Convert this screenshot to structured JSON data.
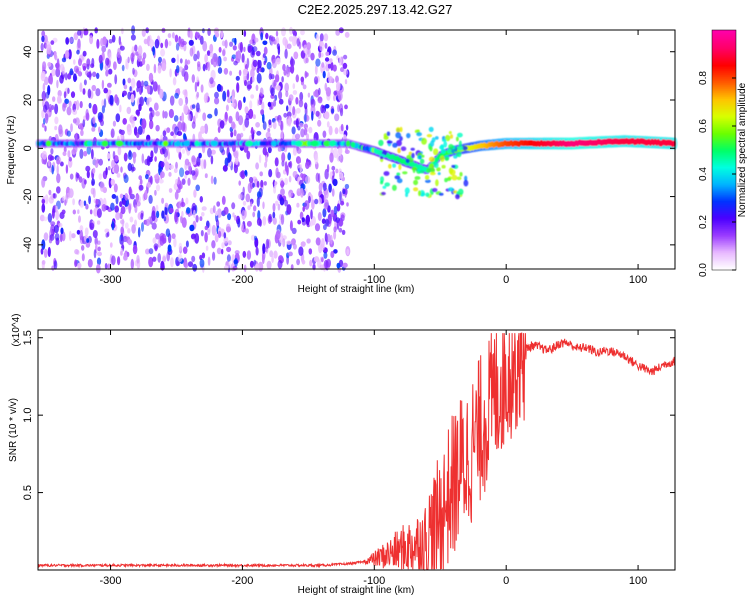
{
  "title": "C2E2.2025.297.13.42.G27",
  "chart_data": [
    {
      "type": "heatmap",
      "title": "C2E2.2025.297.13.42.G27",
      "xlabel": "Height of straight line (km)",
      "ylabel": "Frequency (Hz)",
      "xlim": [
        -355,
        128
      ],
      "ylim": [
        -50,
        49
      ],
      "x_ticks": [
        -300,
        -200,
        -100,
        0,
        100
      ],
      "y_ticks": [
        -40,
        -20,
        0,
        20,
        40
      ],
      "x_tick_labels": [
        "-300",
        "-200",
        "-100",
        "0",
        "100"
      ],
      "y_tick_labels": [
        "-40",
        "-20",
        "0",
        "20",
        "40"
      ],
      "colorbar": {
        "label": "Normalized spectral amplitude",
        "range": [
          0,
          1
        ],
        "ticks": [
          0.0,
          0.2,
          0.4,
          0.6,
          0.8
        ],
        "tick_labels": [
          "0.0",
          "0.2",
          "0.4",
          "0.6",
          "0.8"
        ],
        "colors": [
          "#ffffff",
          "#e8b8ff",
          "#9a3cff",
          "#4b00ff",
          "#0033ff",
          "#00b4ff",
          "#00ffe0",
          "#00ff66",
          "#6cff00",
          "#d8ff00",
          "#ffc400",
          "#ff5a00",
          "#ff0000",
          "#ff0066",
          "#ff00a8"
        ]
      },
      "ridge": [
        {
          "x": -355,
          "y": 2,
          "amp": 0.3
        },
        {
          "x": -200,
          "y": 2,
          "amp": 0.3
        },
        {
          "x": -120,
          "y": 2,
          "amp": 0.35
        },
        {
          "x": -100,
          "y": -1,
          "amp": 0.45
        },
        {
          "x": -80,
          "y": -5,
          "amp": 0.5
        },
        {
          "x": -60,
          "y": -9,
          "amp": 0.45
        },
        {
          "x": -50,
          "y": -3,
          "amp": 0.5
        },
        {
          "x": -40,
          "y": -1,
          "amp": 0.55
        },
        {
          "x": -20,
          "y": 1,
          "amp": 0.7
        },
        {
          "x": 0,
          "y": 2,
          "amp": 0.8
        },
        {
          "x": 50,
          "y": 2,
          "amp": 0.95
        },
        {
          "x": 90,
          "y": 3,
          "amp": 0.9
        },
        {
          "x": 128,
          "y": 2,
          "amp": 0.9
        }
      ]
    },
    {
      "type": "line",
      "title": "",
      "xlabel": "Height of straight line (km)",
      "ylabel": "SNR (10 * v/v)",
      "y_scale_label": "(x10^4)",
      "xlim": [
        -355,
        128
      ],
      "ylim": [
        0,
        1.55
      ],
      "x_ticks": [
        -300,
        -200,
        -100,
        0,
        100
      ],
      "y_ticks": [
        0.5,
        1.0,
        1.5
      ],
      "x_tick_labels": [
        "-300",
        "-200",
        "-100",
        "0",
        "100"
      ],
      "y_tick_labels": [
        "0.5",
        "1.0",
        "1.5"
      ],
      "series": [
        {
          "name": "SNR",
          "color": "#ee3030",
          "x": [
            -355,
            -340,
            -320,
            -300,
            -280,
            -260,
            -240,
            -220,
            -200,
            -180,
            -160,
            -140,
            -120,
            -110,
            -100,
            -90,
            -80,
            -70,
            -60,
            -55,
            -50,
            -45,
            -40,
            -35,
            -30,
            -25,
            -20,
            -15,
            -10,
            -5,
            0,
            5,
            10,
            15,
            20,
            25,
            30,
            35,
            40,
            45,
            50,
            55,
            60,
            65,
            70,
            75,
            80,
            85,
            90,
            95,
            100,
            105,
            110,
            115,
            120,
            128
          ],
          "values": [
            0.03,
            0.03,
            0.03,
            0.03,
            0.03,
            0.03,
            0.03,
            0.03,
            0.03,
            0.03,
            0.03,
            0.03,
            0.04,
            0.05,
            0.07,
            0.1,
            0.13,
            0.16,
            0.2,
            0.25,
            0.35,
            0.45,
            0.55,
            0.65,
            0.72,
            0.8,
            0.9,
            1.0,
            1.1,
            1.2,
            1.28,
            1.35,
            1.4,
            1.43,
            1.45,
            1.44,
            1.42,
            1.43,
            1.46,
            1.47,
            1.45,
            1.43,
            1.44,
            1.42,
            1.4,
            1.42,
            1.41,
            1.4,
            1.38,
            1.35,
            1.32,
            1.3,
            1.28,
            1.3,
            1.33,
            1.35
          ]
        }
      ]
    }
  ]
}
